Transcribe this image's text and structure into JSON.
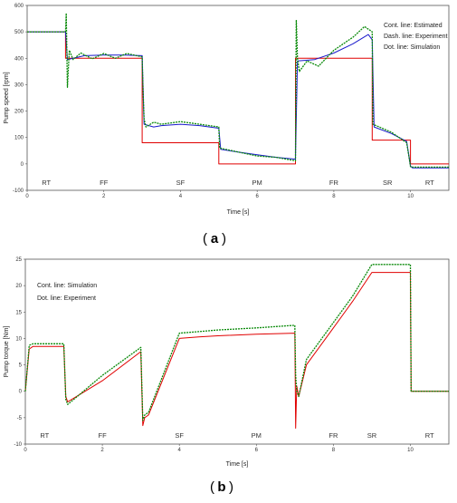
{
  "chart_data": [
    {
      "type": "line",
      "panel": "a",
      "title": "",
      "xlabel": "Time [s]",
      "ylabel": "Pump speed [rpm]",
      "xlim": [
        0,
        11
      ],
      "ylim": [
        -100,
        600
      ],
      "x_ticks": [
        "0",
        "2",
        "4",
        "6",
        "8",
        "10"
      ],
      "y_ticks": [
        "-100",
        "0",
        "100",
        "200",
        "300",
        "400",
        "500",
        "600"
      ],
      "grid": false,
      "legend_position": "top-right",
      "legend": [
        "Cont. line: Estimated",
        "Dash. line: Experiment",
        "Dot. line: Simulation"
      ],
      "regions": [
        {
          "label": "RT",
          "x": 0.5
        },
        {
          "label": "FF",
          "x": 2.0
        },
        {
          "label": "SF",
          "x": 4.0
        },
        {
          "label": "PM",
          "x": 6.0
        },
        {
          "label": "FR",
          "x": 8.0
        },
        {
          "label": "SR",
          "x": 9.4
        },
        {
          "label": "RT",
          "x": 10.5
        }
      ],
      "series": [
        {
          "color": "#e00000",
          "x": [
            0,
            1,
            1,
            3,
            3,
            5,
            5,
            7,
            7,
            9,
            9,
            10,
            10,
            11
          ],
          "y": [
            500,
            500,
            400,
            400,
            80,
            80,
            0,
            0,
            400,
            400,
            90,
            90,
            0,
            0
          ]
        },
        {
          "color": "#1a1acc",
          "x": [
            0,
            1,
            1.05,
            1.5,
            2,
            2.5,
            3,
            3.05,
            3.3,
            3.5,
            4,
            4.5,
            5,
            5.05,
            5.5,
            6,
            6.5,
            7,
            7.05,
            7.5,
            8,
            8.5,
            8.9,
            9.0,
            9.05,
            9.5,
            9.9,
            10,
            10.05,
            11
          ],
          "y": [
            500,
            500,
            395,
            410,
            412,
            412,
            410,
            150,
            140,
            145,
            150,
            145,
            135,
            55,
            45,
            35,
            25,
            18,
            390,
            395,
            420,
            455,
            490,
            470,
            140,
            115,
            85,
            -8,
            -15,
            -15
          ]
        },
        {
          "color": "#0a8a0a",
          "dashed": true,
          "x": [
            0,
            1,
            1.02,
            1.05,
            1.1,
            1.2,
            1.4,
            1.7,
            2,
            2.3,
            2.6,
            3,
            3.02,
            3.05,
            3.1,
            3.3,
            3.5,
            4,
            4.5,
            5,
            5.02,
            5.5,
            6,
            6.5,
            7,
            7.02,
            7.05,
            7.1,
            7.3,
            7.6,
            8,
            8.5,
            8.8,
            9.0,
            9.02,
            9.5,
            9.9,
            10,
            10.05,
            11
          ],
          "y": [
            500,
            500,
            570,
            290,
            430,
            395,
            420,
            398,
            418,
            400,
            418,
            405,
            300,
            170,
            140,
            158,
            150,
            160,
            150,
            140,
            60,
            45,
            30,
            25,
            12,
            545,
            400,
            350,
            390,
            370,
            430,
            480,
            520,
            500,
            150,
            120,
            80,
            -10,
            -12,
            -12
          ]
        }
      ]
    },
    {
      "type": "line",
      "panel": "b",
      "title": "",
      "xlabel": "Time [s]",
      "ylabel": "Pump torque [Nm]",
      "xlim": [
        0,
        11
      ],
      "ylim": [
        -10,
        25
      ],
      "x_ticks": [
        "0",
        "2",
        "4",
        "6",
        "8",
        "10"
      ],
      "y_ticks": [
        "-10",
        "-5",
        "0",
        "5",
        "10",
        "15",
        "20",
        "25"
      ],
      "grid": false,
      "legend_position": "top-left",
      "legend": [
        "Cont. line: Simulation",
        "Dot. line: Experiment"
      ],
      "regions": [
        {
          "label": "RT",
          "x": 0.5
        },
        {
          "label": "FF",
          "x": 2.0
        },
        {
          "label": "SF",
          "x": 4.0
        },
        {
          "label": "PM",
          "x": 6.0
        },
        {
          "label": "FR",
          "x": 8.0
        },
        {
          "label": "SR",
          "x": 9.0
        },
        {
          "label": "RT",
          "x": 10.5
        }
      ],
      "series": [
        {
          "color": "#e00000",
          "x": [
            0,
            0.1,
            0.2,
            1,
            1.05,
            1.1,
            2,
            3,
            3.05,
            3.1,
            3.2,
            4,
            4.5,
            5,
            6,
            7,
            7.02,
            7.05,
            7.1,
            7.3,
            8,
            8.5,
            9,
            10,
            10.02,
            11
          ],
          "y": [
            0,
            8,
            8.5,
            8.5,
            -1,
            -2,
            2,
            7.5,
            -6.5,
            -5,
            -4.5,
            10,
            10.3,
            10.5,
            10.8,
            11,
            -7,
            1,
            -1,
            5,
            12,
            17,
            22.5,
            22.5,
            0,
            0
          ]
        },
        {
          "color": "#0a8a0a",
          "dashed": true,
          "x": [
            0,
            0.1,
            0.2,
            1,
            1.05,
            1.1,
            2,
            3,
            3.05,
            3.1,
            3.2,
            4,
            4.5,
            5,
            6,
            7,
            7.02,
            7.05,
            7.1,
            7.3,
            8,
            8.5,
            9,
            10,
            10.02,
            11
          ],
          "y": [
            0,
            8.7,
            9,
            9,
            -1.5,
            -2.5,
            3,
            8.3,
            -5.5,
            -4.5,
            -4,
            11,
            11.3,
            11.6,
            12,
            12.5,
            3,
            0,
            -1,
            6,
            13,
            18,
            24,
            24,
            0,
            0
          ]
        }
      ]
    }
  ],
  "captions": {
    "a": "a",
    "b": "b"
  }
}
